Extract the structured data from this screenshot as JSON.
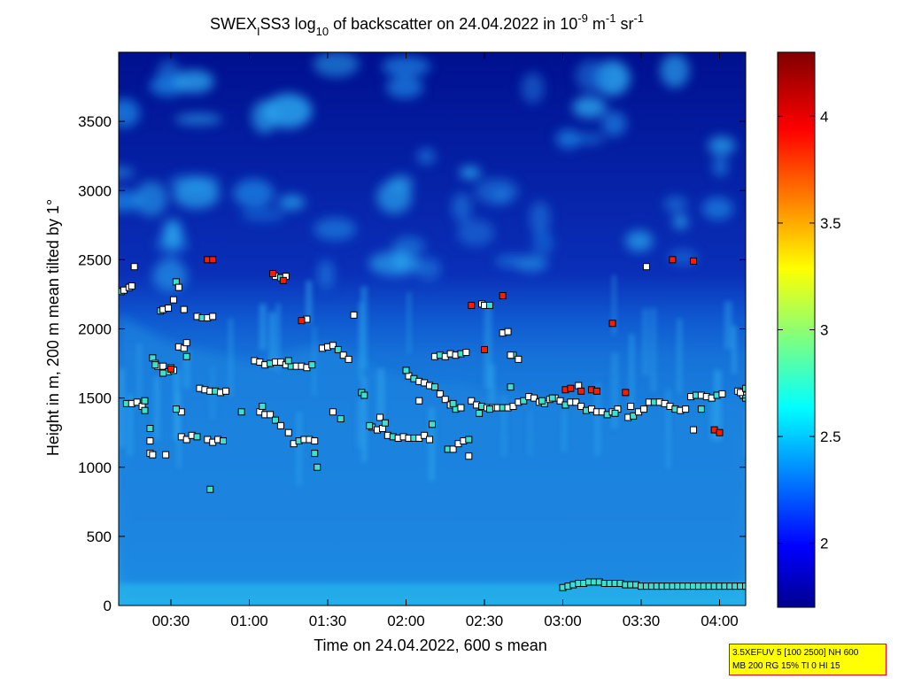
{
  "chart_data": {
    "type": "heatmap",
    "title": {
      "prefix": "SWEX",
      "prefix_sub": "I",
      "middle": "SS3 log",
      "log_sub": "10",
      "suffix": " of backscatter on 24.04.2022 in 10",
      "unit_exp1": "-9",
      "unit_mid": " m",
      "unit_exp2": "-1",
      "unit_end": " sr",
      "unit_exp3": "-1"
    },
    "xlabel": "Time on 24.04.2022, 600 s mean",
    "ylabel": "Height in m, 200 m mean tilted by 1°",
    "x_range_minutes": [
      10,
      250
    ],
    "y_range_m": [
      0,
      4000
    ],
    "x_ticks": [
      {
        "minutes": 30,
        "label": "00:30"
      },
      {
        "minutes": 60,
        "label": "01:00"
      },
      {
        "minutes": 90,
        "label": "01:30"
      },
      {
        "minutes": 120,
        "label": "02:00"
      },
      {
        "minutes": 150,
        "label": "02:30"
      },
      {
        "minutes": 180,
        "label": "03:00"
      },
      {
        "minutes": 210,
        "label": "03:30"
      },
      {
        "minutes": 240,
        "label": "04:00"
      }
    ],
    "y_ticks": [
      0,
      500,
      1000,
      1500,
      2000,
      2500,
      3000,
      3500
    ],
    "colorbar": {
      "range": [
        1.7,
        4.3
      ],
      "ticks": [
        2,
        2.5,
        3,
        3.5,
        4
      ]
    },
    "grid": false,
    "boundary_layer_top_m": [
      [
        10,
        2100
      ],
      [
        20,
        2000
      ],
      [
        30,
        1900
      ],
      [
        40,
        1850
      ],
      [
        50,
        1800
      ],
      [
        60,
        1750
      ],
      [
        70,
        1800
      ],
      [
        80,
        1850
      ],
      [
        90,
        1900
      ],
      [
        100,
        1800
      ],
      [
        110,
        1700
      ],
      [
        120,
        1650
      ],
      [
        130,
        1600
      ],
      [
        140,
        1600
      ],
      [
        150,
        1550
      ],
      [
        160,
        1550
      ],
      [
        170,
        1500
      ],
      [
        180,
        1500
      ],
      [
        190,
        1450
      ],
      [
        200,
        1450
      ],
      [
        210,
        1450
      ],
      [
        220,
        1500
      ],
      [
        230,
        1500
      ],
      [
        240,
        1500
      ],
      [
        250,
        1500
      ]
    ],
    "markers": {
      "level_1500": [
        [
          13,
          1460
        ],
        [
          15,
          1460
        ],
        [
          17,
          1470
        ],
        [
          19,
          1440
        ],
        [
          20,
          1410
        ],
        [
          41,
          1570
        ],
        [
          43,
          1560
        ],
        [
          45,
          1550
        ],
        [
          47,
          1550
        ],
        [
          49,
          1540
        ],
        [
          51,
          1550
        ],
        [
          121,
          1660
        ],
        [
          123,
          1640
        ],
        [
          125,
          1620
        ],
        [
          127,
          1610
        ],
        [
          129,
          1590
        ],
        [
          131,
          1580
        ],
        [
          133,
          1530
        ],
        [
          135,
          1490
        ],
        [
          137,
          1450
        ],
        [
          139,
          1420
        ],
        [
          141,
          1430
        ],
        [
          145,
          1480
        ],
        [
          147,
          1450
        ],
        [
          149,
          1440
        ],
        [
          151,
          1430
        ],
        [
          153,
          1430
        ],
        [
          155,
          1430
        ],
        [
          157,
          1430
        ],
        [
          159,
          1430
        ],
        [
          161,
          1440
        ],
        [
          163,
          1470
        ],
        [
          165,
          1480
        ],
        [
          167,
          1510
        ],
        [
          169,
          1500
        ],
        [
          171,
          1470
        ],
        [
          173,
          1460
        ],
        [
          175,
          1490
        ],
        [
          177,
          1500
        ],
        [
          179,
          1480
        ],
        [
          181,
          1450
        ],
        [
          183,
          1470
        ],
        [
          185,
          1470
        ],
        [
          187,
          1440
        ],
        [
          189,
          1410
        ],
        [
          191,
          1420
        ],
        [
          193,
          1400
        ],
        [
          195,
          1400
        ],
        [
          197,
          1380
        ],
        [
          199,
          1400
        ],
        [
          201,
          1420
        ],
        [
          205,
          1360
        ],
        [
          207,
          1370
        ],
        [
          209,
          1400
        ],
        [
          211,
          1420
        ],
        [
          213,
          1470
        ],
        [
          215,
          1470
        ],
        [
          217,
          1470
        ],
        [
          219,
          1460
        ],
        [
          221,
          1440
        ],
        [
          223,
          1420
        ],
        [
          225,
          1410
        ],
        [
          227,
          1420
        ],
        [
          229,
          1510
        ],
        [
          231,
          1520
        ],
        [
          233,
          1520
        ],
        [
          235,
          1510
        ],
        [
          237,
          1500
        ],
        [
          239,
          1520
        ],
        [
          241,
          1530
        ],
        [
          247,
          1550
        ],
        [
          249,
          1520
        ],
        [
          250,
          1500
        ]
      ],
      "level_1700": [
        [
          23,
          1790
        ],
        [
          24,
          1750
        ],
        [
          25,
          1730
        ],
        [
          27,
          1730
        ],
        [
          29,
          1690
        ],
        [
          31,
          1700
        ],
        [
          33,
          1870
        ],
        [
          35,
          1860
        ],
        [
          36,
          1800
        ],
        [
          62,
          1770
        ],
        [
          64,
          1760
        ],
        [
          66,
          1740
        ],
        [
          68,
          1750
        ],
        [
          70,
          1760
        ],
        [
          72,
          1760
        ],
        [
          74,
          1740
        ],
        [
          76,
          1730
        ],
        [
          78,
          1730
        ],
        [
          80,
          1730
        ],
        [
          82,
          1720
        ],
        [
          84,
          1740
        ],
        [
          88,
          1860
        ],
        [
          90,
          1870
        ],
        [
          92,
          1880
        ],
        [
          94,
          1850
        ],
        [
          96,
          1810
        ],
        [
          98,
          1780
        ],
        [
          131,
          1800
        ],
        [
          133,
          1810
        ],
        [
          135,
          1800
        ],
        [
          137,
          1820
        ],
        [
          139,
          1810
        ],
        [
          141,
          1820
        ],
        [
          143,
          1830
        ],
        [
          157,
          1970
        ],
        [
          159,
          1980
        ],
        [
          161,
          1810
        ],
        [
          163,
          1780
        ]
      ],
      "level_1200": [
        [
          22,
          1280
        ],
        [
          34,
          1220
        ],
        [
          36,
          1200
        ],
        [
          38,
          1230
        ],
        [
          40,
          1220
        ],
        [
          44,
          1200
        ],
        [
          46,
          1180
        ],
        [
          48,
          1200
        ],
        [
          50,
          1190
        ],
        [
          64,
          1400
        ],
        [
          66,
          1380
        ],
        [
          68,
          1380
        ],
        [
          70,
          1340
        ],
        [
          72,
          1300
        ],
        [
          75,
          1250
        ],
        [
          77,
          1170
        ],
        [
          79,
          1190
        ],
        [
          81,
          1200
        ],
        [
          83,
          1200
        ],
        [
          85,
          1190
        ],
        [
          107,
          1290
        ],
        [
          109,
          1270
        ],
        [
          111,
          1280
        ],
        [
          113,
          1230
        ],
        [
          115,
          1220
        ],
        [
          117,
          1210
        ],
        [
          119,
          1220
        ],
        [
          121,
          1210
        ],
        [
          123,
          1210
        ],
        [
          125,
          1210
        ],
        [
          127,
          1230
        ],
        [
          129,
          1200
        ],
        [
          136,
          1130
        ],
        [
          138,
          1130
        ],
        [
          140,
          1170
        ],
        [
          142,
          1190
        ],
        [
          144,
          1200
        ]
      ],
      "level_2200": [
        [
          11,
          2270
        ],
        [
          12,
          2280
        ],
        [
          14,
          2300
        ],
        [
          15,
          2310
        ],
        [
          26,
          2130
        ],
        [
          27,
          2140
        ],
        [
          29,
          2150
        ],
        [
          31,
          2210
        ],
        [
          32,
          2340
        ],
        [
          33,
          2300
        ],
        [
          35,
          2140
        ],
        [
          40,
          2090
        ],
        [
          42,
          2080
        ],
        [
          44,
          2080
        ],
        [
          46,
          2090
        ],
        [
          70,
          2380
        ],
        [
          72,
          2370
        ],
        [
          74,
          2380
        ],
        [
          149,
          2180
        ],
        [
          150,
          2170
        ],
        [
          152,
          2170
        ]
      ],
      "scattered_white": [
        [
          16,
          2450
        ],
        [
          22,
          1100
        ],
        [
          23,
          1090
        ],
        [
          22,
          1190
        ],
        [
          28,
          1090
        ],
        [
          36,
          1900
        ],
        [
          34,
          1400
        ],
        [
          82,
          2070
        ],
        [
          92,
          1400
        ],
        [
          100,
          2100
        ],
        [
          110,
          1360
        ],
        [
          125,
          1480
        ],
        [
          144,
          1080
        ],
        [
          160,
          1810
        ],
        [
          186,
          1590
        ],
        [
          206,
          1440
        ],
        [
          212,
          2450
        ],
        [
          230,
          1270
        ],
        [
          248,
          1540
        ]
      ],
      "scattered_cyan": [
        [
          20,
          1480
        ],
        [
          24,
          1740
        ],
        [
          27,
          1680
        ],
        [
          30,
          1720
        ],
        [
          32,
          1420
        ],
        [
          45,
          840
        ],
        [
          57,
          1400
        ],
        [
          65,
          1440
        ],
        [
          75,
          1770
        ],
        [
          85,
          1100
        ],
        [
          86,
          1000
        ],
        [
          95,
          1350
        ],
        [
          103,
          1540
        ],
        [
          104,
          1520
        ],
        [
          106,
          1300
        ],
        [
          112,
          1320
        ],
        [
          120,
          1700
        ],
        [
          130,
          1310
        ],
        [
          138,
          1460
        ],
        [
          148,
          1390
        ],
        [
          152,
          1420
        ],
        [
          160,
          1580
        ],
        [
          172,
          1480
        ],
        [
          176,
          1500
        ],
        [
          200,
          1390
        ],
        [
          233,
          1420
        ],
        [
          250,
          1570
        ]
      ],
      "red": [
        [
          30,
          1710
        ],
        [
          44,
          2500
        ],
        [
          46,
          2500
        ],
        [
          69,
          2400
        ],
        [
          73,
          2350
        ],
        [
          80,
          2060
        ],
        [
          145,
          2170
        ],
        [
          150,
          1850
        ],
        [
          157,
          2240
        ],
        [
          191,
          1560
        ],
        [
          193,
          1550
        ],
        [
          199,
          2040
        ],
        [
          204,
          1540
        ],
        [
          222,
          2500
        ],
        [
          230,
          2490
        ],
        [
          238,
          1270
        ],
        [
          240,
          1250
        ],
        [
          187,
          1550
        ],
        [
          181,
          1560
        ],
        [
          183,
          1570
        ]
      ],
      "surface_layer": [
        [
          180,
          130
        ],
        [
          182,
          140
        ],
        [
          184,
          150
        ],
        [
          186,
          160
        ],
        [
          188,
          160
        ],
        [
          190,
          170
        ],
        [
          192,
          170
        ],
        [
          194,
          170
        ],
        [
          196,
          160
        ],
        [
          198,
          160
        ],
        [
          200,
          160
        ],
        [
          202,
          160
        ],
        [
          204,
          150
        ],
        [
          206,
          150
        ],
        [
          208,
          150
        ],
        [
          210,
          140
        ],
        [
          212,
          140
        ],
        [
          214,
          140
        ],
        [
          216,
          140
        ],
        [
          218,
          140
        ],
        [
          220,
          140
        ],
        [
          222,
          140
        ],
        [
          224,
          140
        ],
        [
          226,
          140
        ],
        [
          228,
          140
        ],
        [
          230,
          140
        ],
        [
          232,
          140
        ],
        [
          234,
          140
        ],
        [
          236,
          140
        ],
        [
          238,
          140
        ],
        [
          240,
          140
        ],
        [
          242,
          140
        ],
        [
          244,
          140
        ],
        [
          246,
          140
        ],
        [
          248,
          140
        ],
        [
          250,
          140
        ]
      ]
    }
  },
  "info_box": {
    "line1": "3.5XEFUV 5 [100 2500] NH 600",
    "line2": "MB 200 RG 15% TI 0 HI 15"
  }
}
